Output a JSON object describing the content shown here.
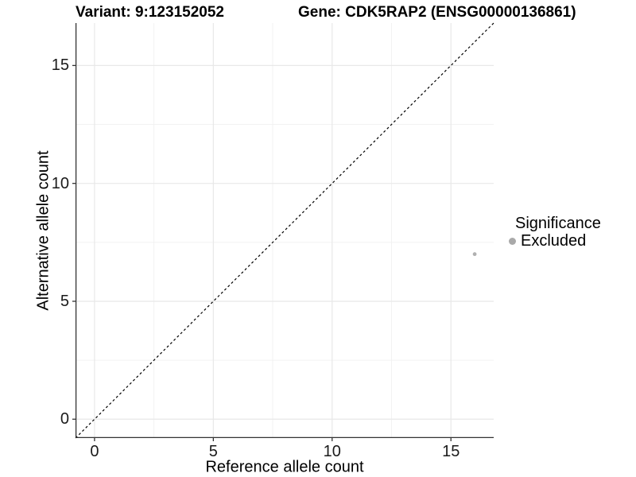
{
  "header": {
    "title_left": "Variant: 9:123152052",
    "title_right": "Gene: CDK5RAP2 (ENSG00000136861)"
  },
  "chart_data": {
    "type": "scatter",
    "title_left": "Variant: 9:123152052",
    "title_right": "Gene: CDK5RAP2 (ENSG00000136861)",
    "xlabel": "Reference allele count",
    "ylabel": "Alternative allele count",
    "xlim": [
      -0.8,
      16.8
    ],
    "ylim": [
      -0.8,
      16.8
    ],
    "x_ticks": [
      0,
      5,
      10,
      15
    ],
    "y_ticks": [
      0,
      5,
      10,
      15
    ],
    "x_minor_ticks": [
      2.5,
      7.5,
      12.5
    ],
    "y_minor_ticks": [
      2.5,
      7.5,
      12.5
    ],
    "grid": true,
    "background": "#ffffff",
    "major_grid_color": "#e8e8e8",
    "minor_grid_color": "#f2f2f2",
    "axis_line_color": "#333333",
    "reference_line": {
      "type": "identity",
      "style": "dashed",
      "color": "#000000"
    },
    "series": [
      {
        "name": "Excluded",
        "color": "#b0b0b0",
        "points": [
          {
            "x": 16,
            "y": 7
          }
        ]
      }
    ],
    "legend": {
      "title": "Significance",
      "position": "right",
      "entries": [
        {
          "label": "Excluded",
          "color": "#a9a9a9"
        }
      ]
    }
  }
}
